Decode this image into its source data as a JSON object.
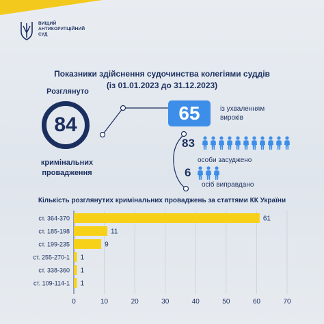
{
  "brand": {
    "logo_lines": [
      "ВИЩИЙ",
      "АНТИКОРУПЦІЙНИЙ",
      "СУД"
    ],
    "accent": "#f3c91d",
    "navy": "#1b2f5f",
    "blue": "#3d8ee8"
  },
  "title": {
    "line1": "Показники здійснення судочинства колегіями суддів",
    "line2": "(із 01.01.2023 до 31.12.2023)"
  },
  "summary": {
    "considered_label": "Розглянуто",
    "considered_value": "84",
    "considered_sub1": "кримінальних",
    "considered_sub2": "провадження",
    "verdicts_value": "65",
    "verdicts_line1": "із ухваленням",
    "verdicts_line2": "вироків",
    "convicted_value": "83",
    "convicted_label": "особи засуджено",
    "convicted_icon_count": 11,
    "acquitted_value": "6",
    "acquitted_label": "осіб виправдано",
    "acquitted_icon_count": 3,
    "person_icon": "person-icon"
  },
  "chart_data": {
    "type": "bar",
    "orientation": "horizontal",
    "title": "Кількість розглянутих кримінальних проваджень за статтями КК України",
    "categories": [
      "ст. 364-370",
      "ст. 185-198",
      "ст. 199-235",
      "ст. 255-270-1",
      "ст. 338-360",
      "ст. 109-114-1"
    ],
    "values": [
      61,
      11,
      9,
      1,
      1,
      1
    ],
    "data_labels": [
      "61",
      "11",
      "9",
      "1",
      "1",
      "1"
    ],
    "xlim": [
      0,
      70
    ],
    "xticks": [
      "0",
      "10",
      "20",
      "30",
      "40",
      "50",
      "60",
      "70"
    ],
    "grid": true,
    "bar_color": "#f7d117",
    "grid_color": "#c6ccd4"
  }
}
